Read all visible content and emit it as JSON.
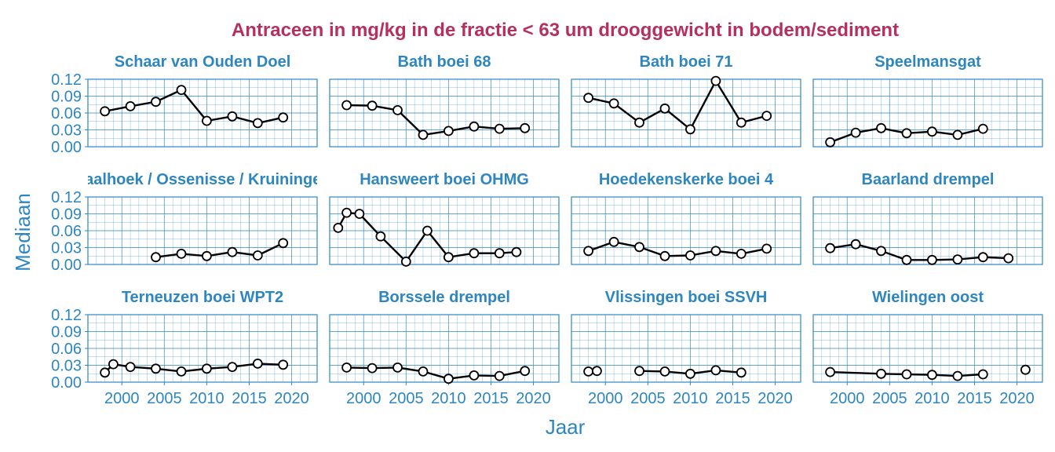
{
  "chart_data": {
    "type": "line",
    "title": "Antraceen in mg/kg in de fractie < 63 um drooggewicht in bodem/sediment",
    "xlabel": "Jaar",
    "ylabel": "Mediaan",
    "xlim": [
      1996,
      2023
    ],
    "ylim": [
      0,
      0.12
    ],
    "x_ticks": [
      2000,
      2005,
      2010,
      2015,
      2020
    ],
    "y_ticks": [
      "0.00",
      "0.03",
      "0.06",
      "0.09",
      "0.12"
    ],
    "grid": true,
    "series_color": "#000000",
    "marker_fill": "#ffffff",
    "facets": [
      {
        "name": "Schaar van Ouden Doel",
        "points": [
          {
            "x": 1998,
            "y": 0.063
          },
          {
            "x": 2001,
            "y": 0.072
          },
          {
            "x": 2004,
            "y": 0.08
          },
          {
            "x": 2007,
            "y": 0.101
          },
          {
            "x": 2010,
            "y": 0.046
          },
          {
            "x": 2013,
            "y": 0.054
          },
          {
            "x": 2016,
            "y": 0.042
          },
          {
            "x": 2019,
            "y": 0.052
          }
        ]
      },
      {
        "name": "Bath boei 68",
        "points": [
          {
            "x": 1998,
            "y": 0.074
          },
          {
            "x": 2001,
            "y": 0.073
          },
          {
            "x": 2004,
            "y": 0.065
          },
          {
            "x": 2007,
            "y": 0.021
          },
          {
            "x": 2010,
            "y": 0.028
          },
          {
            "x": 2013,
            "y": 0.036
          },
          {
            "x": 2016,
            "y": 0.032
          },
          {
            "x": 2019,
            "y": 0.033
          }
        ]
      },
      {
        "name": "Bath boei 71",
        "points": [
          {
            "x": 1998,
            "y": 0.087
          },
          {
            "x": 2001,
            "y": 0.077
          },
          {
            "x": 2004,
            "y": 0.043
          },
          {
            "x": 2007,
            "y": 0.068
          },
          {
            "x": 2010,
            "y": 0.031
          },
          {
            "x": 2013,
            "y": 0.117
          },
          {
            "x": 2016,
            "y": 0.043
          },
          {
            "x": 2019,
            "y": 0.055
          }
        ]
      },
      {
        "name": "Speelmansgat",
        "points": [
          {
            "x": 1998,
            "y": 0.008
          },
          {
            "x": 2001,
            "y": 0.025
          },
          {
            "x": 2004,
            "y": 0.033
          },
          {
            "x": 2007,
            "y": 0.024
          },
          {
            "x": 2010,
            "y": 0.027
          },
          {
            "x": 2013,
            "y": 0.021
          },
          {
            "x": 2016,
            "y": 0.032
          }
        ]
      },
      {
        "name": "Hansweert / Waarde / Baalhoek / Ossenisse / Kruiningen Perkpolder (drempel)",
        "points": [
          {
            "x": 2004,
            "y": 0.013
          },
          {
            "x": 2007,
            "y": 0.019
          },
          {
            "x": 2010,
            "y": 0.015
          },
          {
            "x": 2013,
            "y": 0.022
          },
          {
            "x": 2016,
            "y": 0.016
          },
          {
            "x": 2019,
            "y": 0.038
          }
        ]
      },
      {
        "name": "Hansweert boei OHMG",
        "points": [
          {
            "x": 1997,
            "y": 0.065
          },
          {
            "x": 1998,
            "y": 0.092
          },
          {
            "x": 1999.5,
            "y": 0.09
          },
          {
            "x": 2002,
            "y": 0.05
          },
          {
            "x": 2005,
            "y": 0.005
          },
          {
            "x": 2007.5,
            "y": 0.06
          },
          {
            "x": 2010,
            "y": 0.013
          },
          {
            "x": 2013,
            "y": 0.02
          },
          {
            "x": 2016,
            "y": 0.02
          },
          {
            "x": 2018,
            "y": 0.022
          }
        ]
      },
      {
        "name": "Hoedekenskerke boei 4",
        "points": [
          {
            "x": 1998,
            "y": 0.024
          },
          {
            "x": 2001,
            "y": 0.04
          },
          {
            "x": 2004,
            "y": 0.031
          },
          {
            "x": 2007,
            "y": 0.015
          },
          {
            "x": 2010,
            "y": 0.016
          },
          {
            "x": 2013,
            "y": 0.024
          },
          {
            "x": 2016,
            "y": 0.019
          },
          {
            "x": 2019,
            "y": 0.028
          }
        ]
      },
      {
        "name": "Baarland drempel",
        "points": [
          {
            "x": 1998,
            "y": 0.029
          },
          {
            "x": 2001,
            "y": 0.036
          },
          {
            "x": 2004,
            "y": 0.024
          },
          {
            "x": 2007,
            "y": 0.008
          },
          {
            "x": 2010,
            "y": 0.008
          },
          {
            "x": 2013,
            "y": 0.009
          },
          {
            "x": 2016,
            "y": 0.013
          },
          {
            "x": 2019,
            "y": 0.011
          }
        ]
      },
      {
        "name": "Terneuzen boei WPT2",
        "points": [
          {
            "x": 1998,
            "y": 0.017
          },
          {
            "x": 1999,
            "y": 0.032
          },
          {
            "x": 2001,
            "y": 0.027
          },
          {
            "x": 2004,
            "y": 0.024
          },
          {
            "x": 2007,
            "y": 0.019
          },
          {
            "x": 2010,
            "y": 0.024
          },
          {
            "x": 2013,
            "y": 0.027
          },
          {
            "x": 2016,
            "y": 0.033
          },
          {
            "x": 2019,
            "y": 0.031
          }
        ]
      },
      {
        "name": "Borssele drempel",
        "points": [
          {
            "x": 1998,
            "y": 0.026
          },
          {
            "x": 2001,
            "y": 0.025
          },
          {
            "x": 2004,
            "y": 0.026
          },
          {
            "x": 2007,
            "y": 0.019
          },
          {
            "x": 2010,
            "y": 0.006
          },
          {
            "x": 2013,
            "y": 0.012
          },
          {
            "x": 2016,
            "y": 0.011
          },
          {
            "x": 2019,
            "y": 0.02
          }
        ]
      },
      {
        "name": "Vlissingen boei SSVH",
        "points": [
          {
            "x": 1998,
            "y": 0.019,
            "break": true
          },
          {
            "x": 1999,
            "y": 0.02,
            "break": true
          },
          {
            "x": 2004,
            "y": 0.02
          },
          {
            "x": 2007,
            "y": 0.019
          },
          {
            "x": 2010,
            "y": 0.015
          },
          {
            "x": 2013,
            "y": 0.021
          },
          {
            "x": 2016,
            "y": 0.017
          }
        ]
      },
      {
        "name": "Wielingen oost",
        "points": [
          {
            "x": 1998,
            "y": 0.018
          },
          {
            "x": 2004,
            "y": 0.015
          },
          {
            "x": 2007,
            "y": 0.014
          },
          {
            "x": 2010,
            "y": 0.013
          },
          {
            "x": 2013,
            "y": 0.011
          },
          {
            "x": 2016,
            "y": 0.014
          },
          {
            "x": 2021,
            "y": 0.022,
            "break": true
          }
        ]
      }
    ]
  }
}
